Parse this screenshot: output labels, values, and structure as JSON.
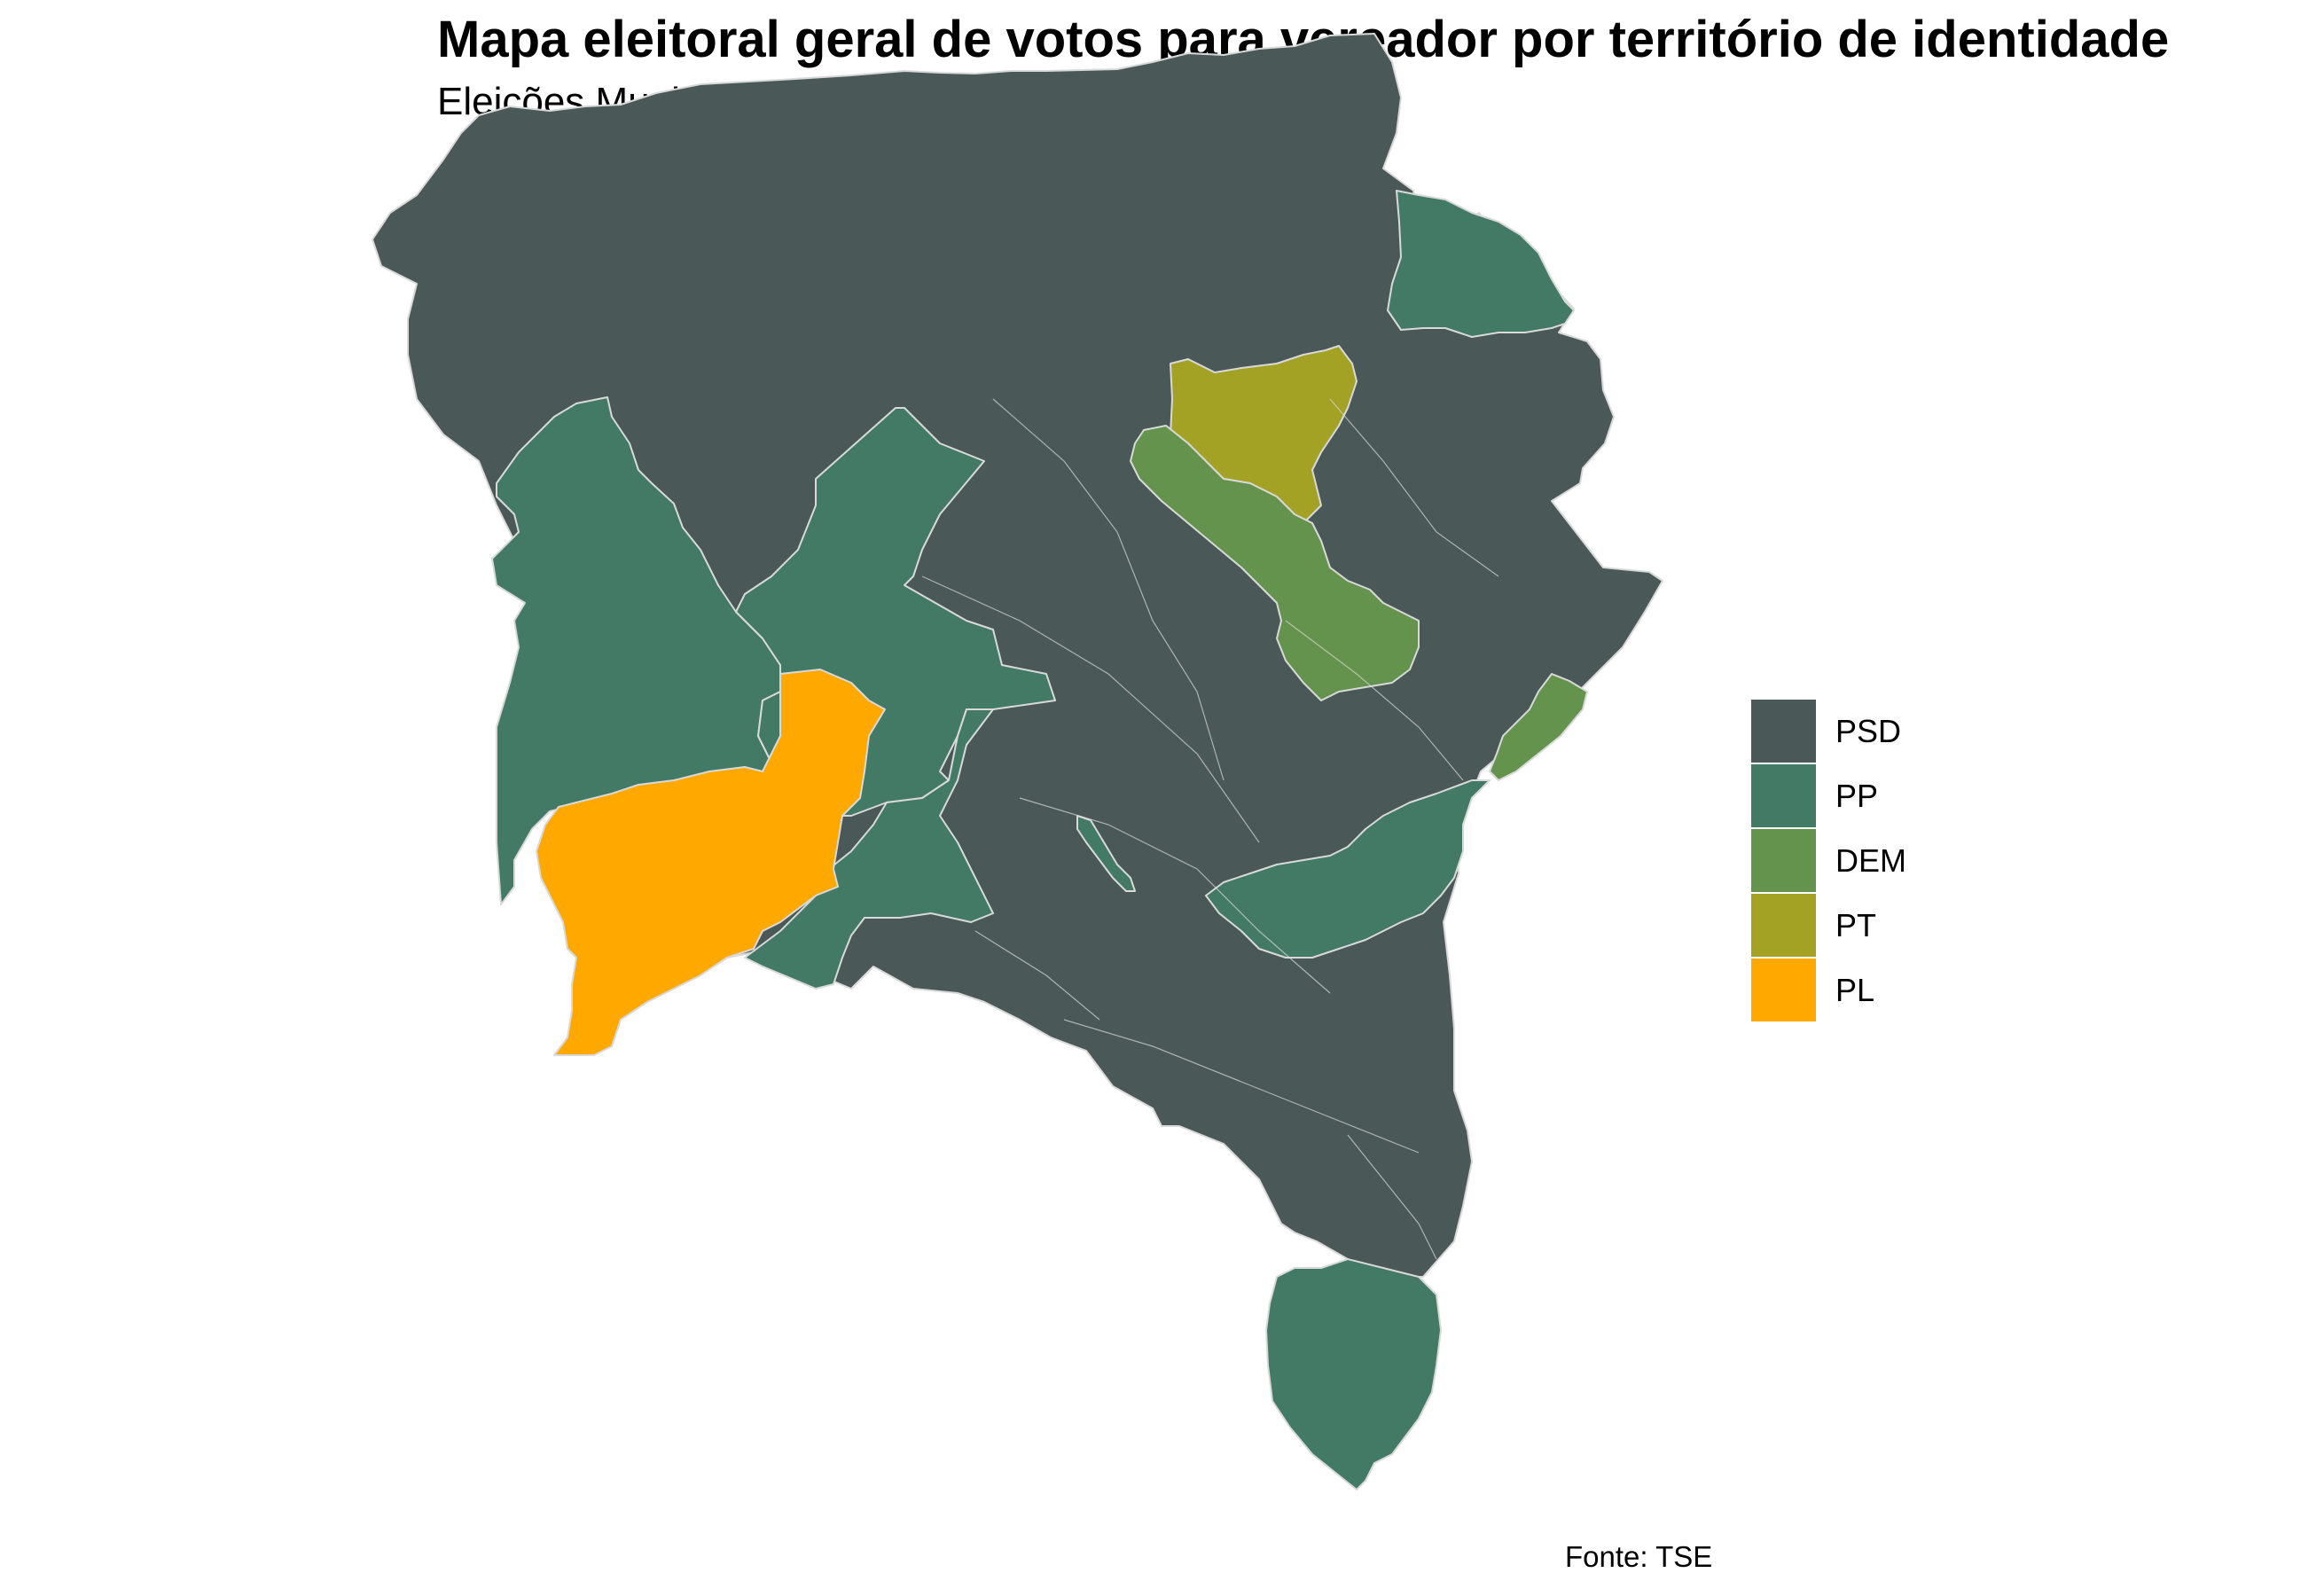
{
  "title": "Mapa eleitoral geral de votos para vereador por território de identidade",
  "subtitle": "Eleições Municipais de Bahia 2020",
  "caption": "Fonte: TSE",
  "legend": {
    "items": [
      {
        "label": "PSD",
        "color": "#4A5958"
      },
      {
        "label": "PP",
        "color": "#427A65"
      },
      {
        "label": "DEM",
        "color": "#63934C"
      },
      {
        "label": "PT",
        "color": "#A3A225"
      },
      {
        "label": "PL",
        "color": "#FFA800"
      }
    ]
  },
  "map": {
    "region": "Bahia",
    "border_color": "#D9D9D9",
    "territories": [
      {
        "id": "northwest-plateau",
        "party": "PP",
        "color": "#427A65"
      },
      {
        "id": "west-central",
        "party": "PP",
        "color": "#427A65"
      },
      {
        "id": "southwest-corridor",
        "party": "PP",
        "color": "#427A65"
      },
      {
        "id": "southwest",
        "party": "PL",
        "color": "#FFA800"
      },
      {
        "id": "north-central",
        "party": "PT",
        "color": "#A3A225"
      },
      {
        "id": "northeast",
        "party": "PP",
        "color": "#427A65"
      },
      {
        "id": "central-north",
        "party": "DEM",
        "color": "#63934C"
      },
      {
        "id": "coastal-north",
        "party": "DEM",
        "color": "#63934C"
      },
      {
        "id": "central-coast",
        "party": "PP",
        "color": "#427A65"
      },
      {
        "id": "small-central",
        "party": "PP",
        "color": "#427A65"
      },
      {
        "id": "extreme-south",
        "party": "PP",
        "color": "#427A65"
      },
      {
        "id": "remaining-state",
        "party": "PSD",
        "color": "#4A5958"
      }
    ]
  }
}
